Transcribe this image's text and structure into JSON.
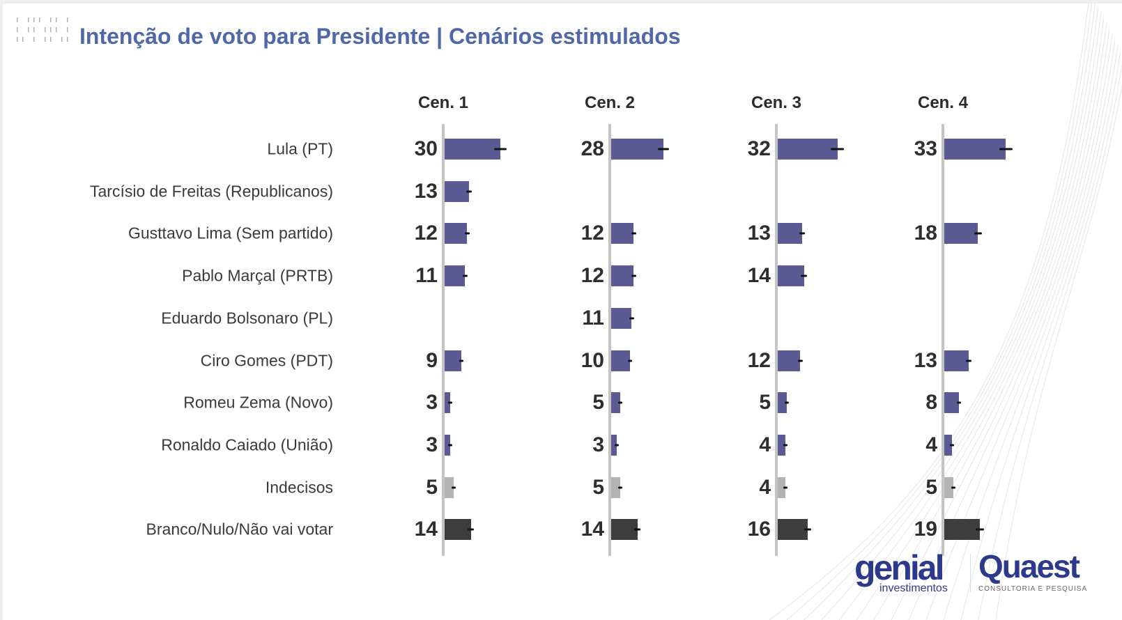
{
  "title": "Intenção de voto para Presidente | Cenários estimulados",
  "chart_data": {
    "type": "bar",
    "orientation": "horizontal",
    "title": "Intenção de voto para Presidente | Cenários estimulados",
    "categories": [
      "Lula (PT)",
      "Tarcísio de Freitas (Republicanos)",
      "Gusttavo Lima (Sem partido)",
      "Pablo Marçal (PRTB)",
      "Eduardo Bolsonaro (PL)",
      "Ciro Gomes (PDT)",
      "Romeu Zema (Novo)",
      "Ronaldo Caiado (União)",
      "Indecisos",
      "Branco/Nulo/Não vai votar"
    ],
    "series": [
      {
        "name": "Cen. 1",
        "values": [
          30,
          13,
          12,
          11,
          null,
          9,
          3,
          3,
          5,
          14
        ]
      },
      {
        "name": "Cen. 2",
        "values": [
          28,
          null,
          12,
          12,
          11,
          10,
          5,
          3,
          5,
          14
        ]
      },
      {
        "name": "Cen. 3",
        "values": [
          32,
          null,
          13,
          14,
          null,
          12,
          5,
          4,
          4,
          16
        ]
      },
      {
        "name": "Cen. 4",
        "values": [
          33,
          null,
          18,
          null,
          null,
          13,
          8,
          4,
          5,
          19
        ]
      }
    ],
    "error_bars": true,
    "colors": {
      "candidate": "#5b5a92",
      "indecisos": "#b3b3b3",
      "branco": "#3d3d3d",
      "title": "#5068a8"
    },
    "grid": false
  },
  "logos": {
    "genial": "genial",
    "genial_sub": "investimentos",
    "quaest": "Quaest",
    "quaest_sub": "CONSULTORIA E PESQUISA"
  }
}
